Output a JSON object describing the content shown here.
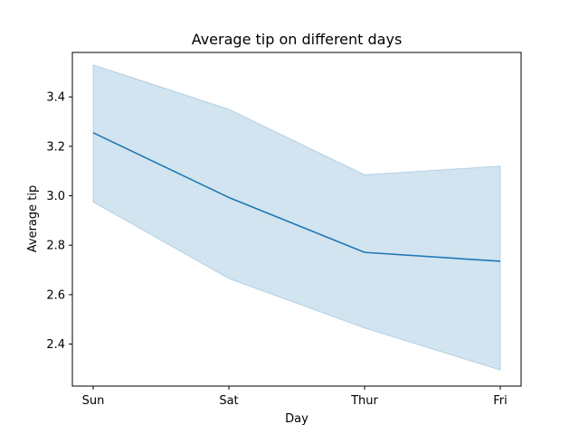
{
  "chart_data": {
    "type": "line",
    "title": "Average tip on different days",
    "xlabel": "Day",
    "ylabel": "Average tip",
    "categories": [
      "Sun",
      "Sat",
      "Thur",
      "Fri"
    ],
    "series": [
      {
        "values": [
          3.255,
          2.993,
          2.771,
          2.735
        ],
        "ci_lower": [
          2.975,
          2.665,
          2.465,
          2.295
        ],
        "ci_upper": [
          3.53,
          3.35,
          3.085,
          3.12
        ],
        "color": "#1f77b4",
        "band_color": "#1f77b4"
      }
    ],
    "yticks": [
      "2.4",
      "2.6",
      "2.8",
      "3.0",
      "3.2",
      "3.4"
    ],
    "ylim": [
      2.23,
      3.58
    ],
    "grid": false,
    "legend": "none"
  }
}
